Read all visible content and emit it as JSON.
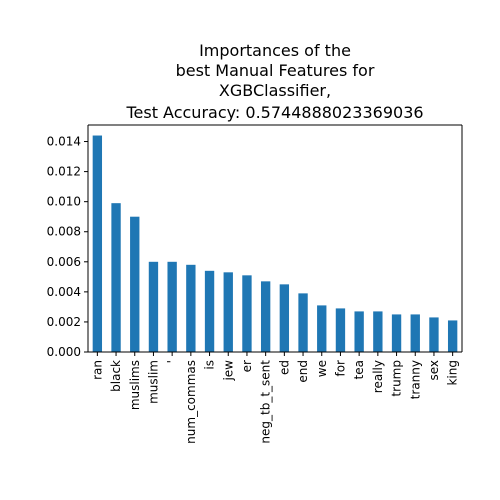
{
  "chart_data": {
    "type": "bar",
    "title_lines": [
      "Importances of the",
      "best Manual Features for",
      "XGBClassifier,",
      "Test Accuracy: 0.5744888023369036"
    ],
    "categories": [
      "ran",
      "black",
      "muslims",
      "muslim",
      "'",
      "num_commas",
      "is",
      "jew",
      "er",
      "neg_tb_t_sent",
      "ed",
      "end",
      "we",
      "for",
      "tea",
      "really",
      "trump",
      "tranny",
      "sex",
      "king"
    ],
    "values": [
      0.0144,
      0.0099,
      0.009,
      0.006,
      0.006,
      0.0058,
      0.0054,
      0.0053,
      0.0051,
      0.0047,
      0.0045,
      0.0039,
      0.0031,
      0.0029,
      0.0027,
      0.0027,
      0.0025,
      0.0025,
      0.0023,
      0.0021
    ],
    "yticks": [
      "0.000",
      "0.002",
      "0.004",
      "0.006",
      "0.008",
      "0.010",
      "0.012",
      "0.014"
    ],
    "ylim": [
      0,
      0.0151
    ],
    "xlabel": "",
    "ylabel": "",
    "grid": false,
    "bar_color": "#1f77b4"
  }
}
